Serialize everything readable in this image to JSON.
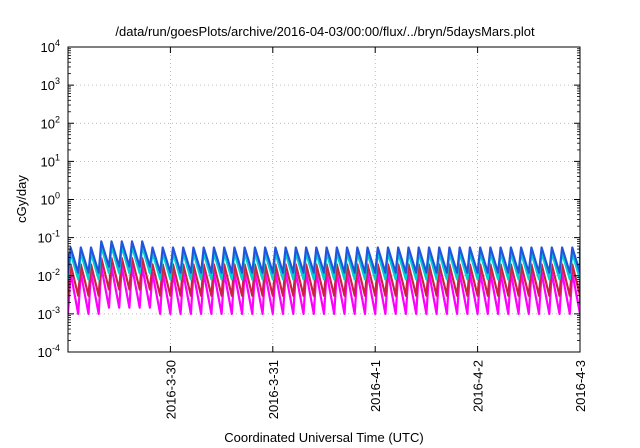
{
  "chart_data": {
    "type": "line",
    "title": "/data/run/goesPlots/archive/2016-04-03/00:00/flux/../bryn/5daysMars.plot",
    "xlabel": "Coordinated Universal Time (UTC)",
    "ylabel": "cGy/day",
    "xlim": [
      "2016-03-29T00:00",
      "2016-04-03T00:00"
    ],
    "ylim": [
      0.0001,
      10000
    ],
    "yscale": "log",
    "grid": true,
    "x_ticks": [
      "2016-3-30",
      "2016-3-31",
      "2016-4-1",
      "2016-4-2",
      "2016-4-3"
    ],
    "y_ticks": [
      {
        "base": "10",
        "exp": "-4"
      },
      {
        "base": "10",
        "exp": "-3"
      },
      {
        "base": "10",
        "exp": "-2"
      },
      {
        "base": "10",
        "exp": "-1"
      },
      {
        "base": "10",
        "exp": "0"
      },
      {
        "base": "10",
        "exp": "1"
      },
      {
        "base": "10",
        "exp": "2"
      },
      {
        "base": "10",
        "exp": "3"
      },
      {
        "base": "10",
        "exp": "4"
      }
    ],
    "series_pattern": "sawtooth, approx. 10 cycles per day",
    "series": [
      {
        "color": "#2255dd",
        "peak": 0.055,
        "trough": 0.012
      },
      {
        "color": "#00d0d0",
        "peak": 0.04,
        "trough": 0.008
      },
      {
        "color": "#cc2244",
        "peak": 0.02,
        "trough": 0.003
      },
      {
        "color": "#ff00ff",
        "peak": 0.012,
        "trough": 0.001
      }
    ]
  }
}
